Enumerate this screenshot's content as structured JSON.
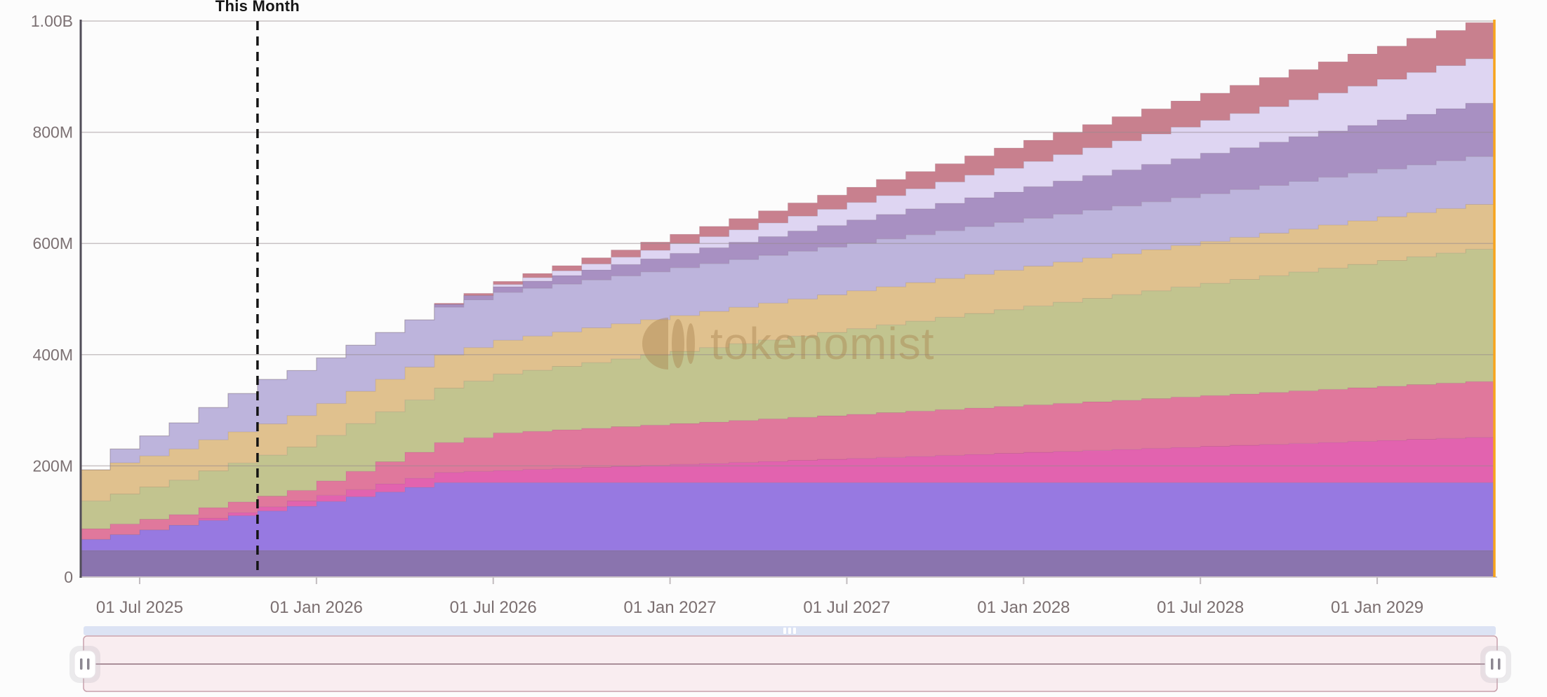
{
  "chart": {
    "this_month_label": "This Month",
    "watermark_text": "tokenomist",
    "background": "#fcfcfc",
    "accent_orange": "#f7a41d",
    "axis_line_color": "#514d58",
    "gridline_color": "rgba(150,138,142,0.5)",
    "dashed_line_color": "#141414"
  },
  "chart_data": {
    "type": "area",
    "stacked": true,
    "step": true,
    "title": "",
    "xlabel": "",
    "ylabel": "",
    "ylim": [
      0,
      1000
    ],
    "unit": "M tokens",
    "grid": true,
    "legend_position": "none",
    "y_tick_values": [
      0,
      200,
      400,
      600,
      800,
      1000
    ],
    "y_tick_labels": [
      "0",
      "200M",
      "400M",
      "600M",
      "800M",
      "1.00B"
    ],
    "x_tick_month_index": [
      2,
      8,
      14,
      20,
      26,
      32,
      38,
      44
    ],
    "x_tick_labels": [
      "01 Jul 2025",
      "01 Jan 2026",
      "01 Jul 2026",
      "01 Jan 2027",
      "01 Jul 2027",
      "01 Jan 2028",
      "01 Jul 2028",
      "01 Jan 2029"
    ],
    "this_month_index": 6,
    "this_month_annotation": "This Month",
    "months": [
      "May 2025",
      "Jun 2025",
      "Jul 2025",
      "Aug 2025",
      "Sep 2025",
      "Oct 2025",
      "Nov 2025",
      "Dec 2025",
      "Jan 2026",
      "Feb 2026",
      "Mar 2026",
      "Apr 2026",
      "May 2026",
      "Jun 2026",
      "Jul 2026",
      "Aug 2026",
      "Sep 2026",
      "Oct 2026",
      "Nov 2026",
      "Dec 2026",
      "Jan 2027",
      "Feb 2027",
      "Mar 2027",
      "Apr 2027",
      "May 2027",
      "Jun 2027",
      "Jul 2027",
      "Aug 2027",
      "Sep 2027",
      "Oct 2027",
      "Nov 2027",
      "Dec 2027",
      "Jan 2028",
      "Feb 2028",
      "Mar 2028",
      "Apr 2028",
      "May 2028",
      "Jun 2028",
      "Jul 2028",
      "Aug 2028",
      "Sep 2028",
      "Oct 2028",
      "Nov 2028",
      "Dec 2028",
      "Jan 2029",
      "Feb 2029",
      "Mar 2029",
      "Apr 2029"
    ],
    "series": [
      {
        "name": "muted-purple",
        "color": "#8a74ae",
        "values": [
          48,
          48,
          48,
          48,
          48,
          48,
          48,
          48,
          48,
          48,
          48,
          48,
          48,
          48,
          48,
          48,
          48,
          48,
          48,
          48,
          48,
          48,
          48,
          48,
          48,
          48,
          48,
          48,
          48,
          48,
          48,
          48,
          48,
          48,
          48,
          48,
          48,
          48,
          48,
          48,
          48,
          48,
          48,
          48,
          48,
          48,
          48,
          48
        ]
      },
      {
        "name": "violet",
        "color": "#9779e1",
        "values": [
          20,
          28.5,
          37,
          45.5,
          54,
          62.5,
          71,
          79.5,
          88,
          96.5,
          105,
          113.5,
          122,
          122,
          122,
          122,
          122,
          122,
          122,
          122,
          122,
          122,
          122,
          122,
          122,
          122,
          122,
          122,
          122,
          122,
          122,
          122,
          122,
          122,
          122,
          122,
          122,
          122,
          122,
          122,
          122,
          122,
          122,
          122,
          122,
          122,
          122,
          122
        ]
      },
      {
        "name": "magenta-pink",
        "color": "#e263af",
        "values": [
          0,
          0,
          0,
          0,
          4,
          5.8,
          7.6,
          9.4,
          11.2,
          13,
          14.8,
          16.6,
          18.4,
          20.2,
          22,
          23.8,
          25.6,
          27.4,
          29.2,
          31,
          32.8,
          34.6,
          36.4,
          38.2,
          40,
          41.8,
          43.6,
          45.4,
          47.2,
          49,
          50.8,
          52.6,
          54.4,
          56.2,
          58,
          59.8,
          61.6,
          63.4,
          65.2,
          67,
          68.8,
          70.6,
          72.4,
          74.2,
          76,
          77.8,
          79.6,
          81.4
        ]
      },
      {
        "name": "rose-pink",
        "color": "#e0789c",
        "values": [
          19,
          19,
          19,
          19,
          19,
          19,
          19,
          19,
          25.9,
          32.8,
          39.7,
          46.6,
          53.5,
          60.4,
          67.3,
          68.3,
          69.3,
          70.3,
          71.3,
          72.3,
          73.3,
          74.3,
          75.3,
          76.3,
          77.3,
          78.3,
          79.3,
          80.3,
          81.3,
          82.3,
          83.3,
          84.3,
          85.3,
          86.3,
          87.3,
          88.3,
          89.3,
          90.3,
          91.3,
          92.3,
          93.3,
          94.3,
          95.3,
          96.3,
          97.3,
          98.3,
          99.3,
          100.3
        ]
      },
      {
        "name": "olive",
        "color": "#c2c48f",
        "values": [
          50,
          54,
          58,
          62,
          66,
          70,
          74,
          78,
          82,
          86,
          90,
          94,
          98,
          102,
          106,
          110,
          114,
          118,
          122,
          126,
          130,
          134,
          138,
          142,
          146,
          150,
          154,
          158,
          162,
          166,
          170,
          174,
          178,
          182,
          186,
          190,
          194,
          198,
          202,
          206,
          210,
          214,
          218,
          222,
          226,
          230,
          234,
          238
        ]
      },
      {
        "name": "tan",
        "color": "#e0c18e",
        "values": [
          56,
          56,
          56,
          56,
          56,
          56,
          56,
          56.6,
          57.2,
          57.8,
          58.4,
          59,
          59.6,
          60.2,
          60.8,
          61.4,
          62,
          62.6,
          63.2,
          63.8,
          64.4,
          65,
          65.6,
          66.2,
          66.8,
          67.4,
          68,
          68.6,
          69.2,
          69.8,
          70.4,
          71,
          71.6,
          72.2,
          72.8,
          73.4,
          74,
          74.6,
          75.2,
          75.8,
          76.4,
          77,
          77.6,
          78.2,
          78.8,
          79.4,
          80,
          80.6
        ]
      },
      {
        "name": "periwinkle",
        "color": "#bdb4dc",
        "values": [
          0,
          25,
          36,
          47,
          58,
          69,
          80,
          81,
          82,
          83,
          84,
          85,
          86,
          86,
          86,
          86,
          86,
          86,
          86,
          86,
          86,
          86,
          86,
          86,
          86,
          86,
          86,
          86,
          86,
          86,
          86,
          86,
          86,
          86,
          86,
          86,
          86,
          86,
          86,
          86,
          86,
          86,
          86,
          86,
          86,
          86,
          86,
          86
        ]
      },
      {
        "name": "mauve",
        "color": "#a890c2",
        "values": [
          0,
          0,
          0,
          0,
          0,
          0,
          0,
          0,
          0,
          0,
          0,
          0,
          5,
          7.6,
          10.2,
          12.8,
          15.4,
          18,
          20.6,
          23.2,
          25.8,
          28.4,
          31,
          33.6,
          36.2,
          38.8,
          41.4,
          44,
          46.6,
          49.2,
          51.8,
          54.4,
          57,
          59.6,
          62.2,
          64.8,
          67.4,
          70,
          72.6,
          75.2,
          77.8,
          80.4,
          83,
          85.6,
          88.2,
          90.8,
          93.4,
          96
        ]
      },
      {
        "name": "pale-lavender",
        "color": "#ded5f2",
        "values": [
          0,
          0,
          0,
          0,
          0,
          0,
          0,
          0,
          0,
          0,
          0,
          0,
          0,
          0,
          4,
          6.3,
          8.6,
          10.9,
          13.2,
          15.5,
          17.8,
          20.1,
          22.4,
          24.7,
          27,
          29.3,
          31.6,
          33.9,
          36.2,
          38.5,
          40.8,
          43.1,
          45.4,
          47.7,
          50,
          52.3,
          54.6,
          56.9,
          59.2,
          61.5,
          63.8,
          66.1,
          68.4,
          70.7,
          73,
          75.3,
          77.6,
          79.9
        ]
      },
      {
        "name": "rose-red",
        "color": "#c8808e",
        "values": [
          0,
          0,
          0,
          0,
          0,
          0,
          0,
          0,
          0,
          0,
          0,
          0,
          2,
          3.8,
          5.6,
          7.4,
          9.2,
          11,
          12.8,
          14.6,
          16.4,
          18.2,
          20,
          21.8,
          23.6,
          25.4,
          27.2,
          29,
          30.8,
          32.6,
          34.4,
          36.2,
          38,
          39.8,
          41.6,
          43.4,
          45.2,
          47,
          48.8,
          50.6,
          52.4,
          54.2,
          56,
          57.8,
          59.6,
          61.4,
          63.2,
          65
        ]
      }
    ]
  },
  "controls": {
    "scrollbar_color": "#dce3f4",
    "scrollbar_grip_color": "#ffffff",
    "slider_fill": "#f9edf0",
    "slider_border": "#c7a0ab",
    "slider_centerline": "#8f6e7c",
    "handle_fill": "#ffffff",
    "handle_grip_color": "#8c8791",
    "range_selected_percent": 100
  }
}
